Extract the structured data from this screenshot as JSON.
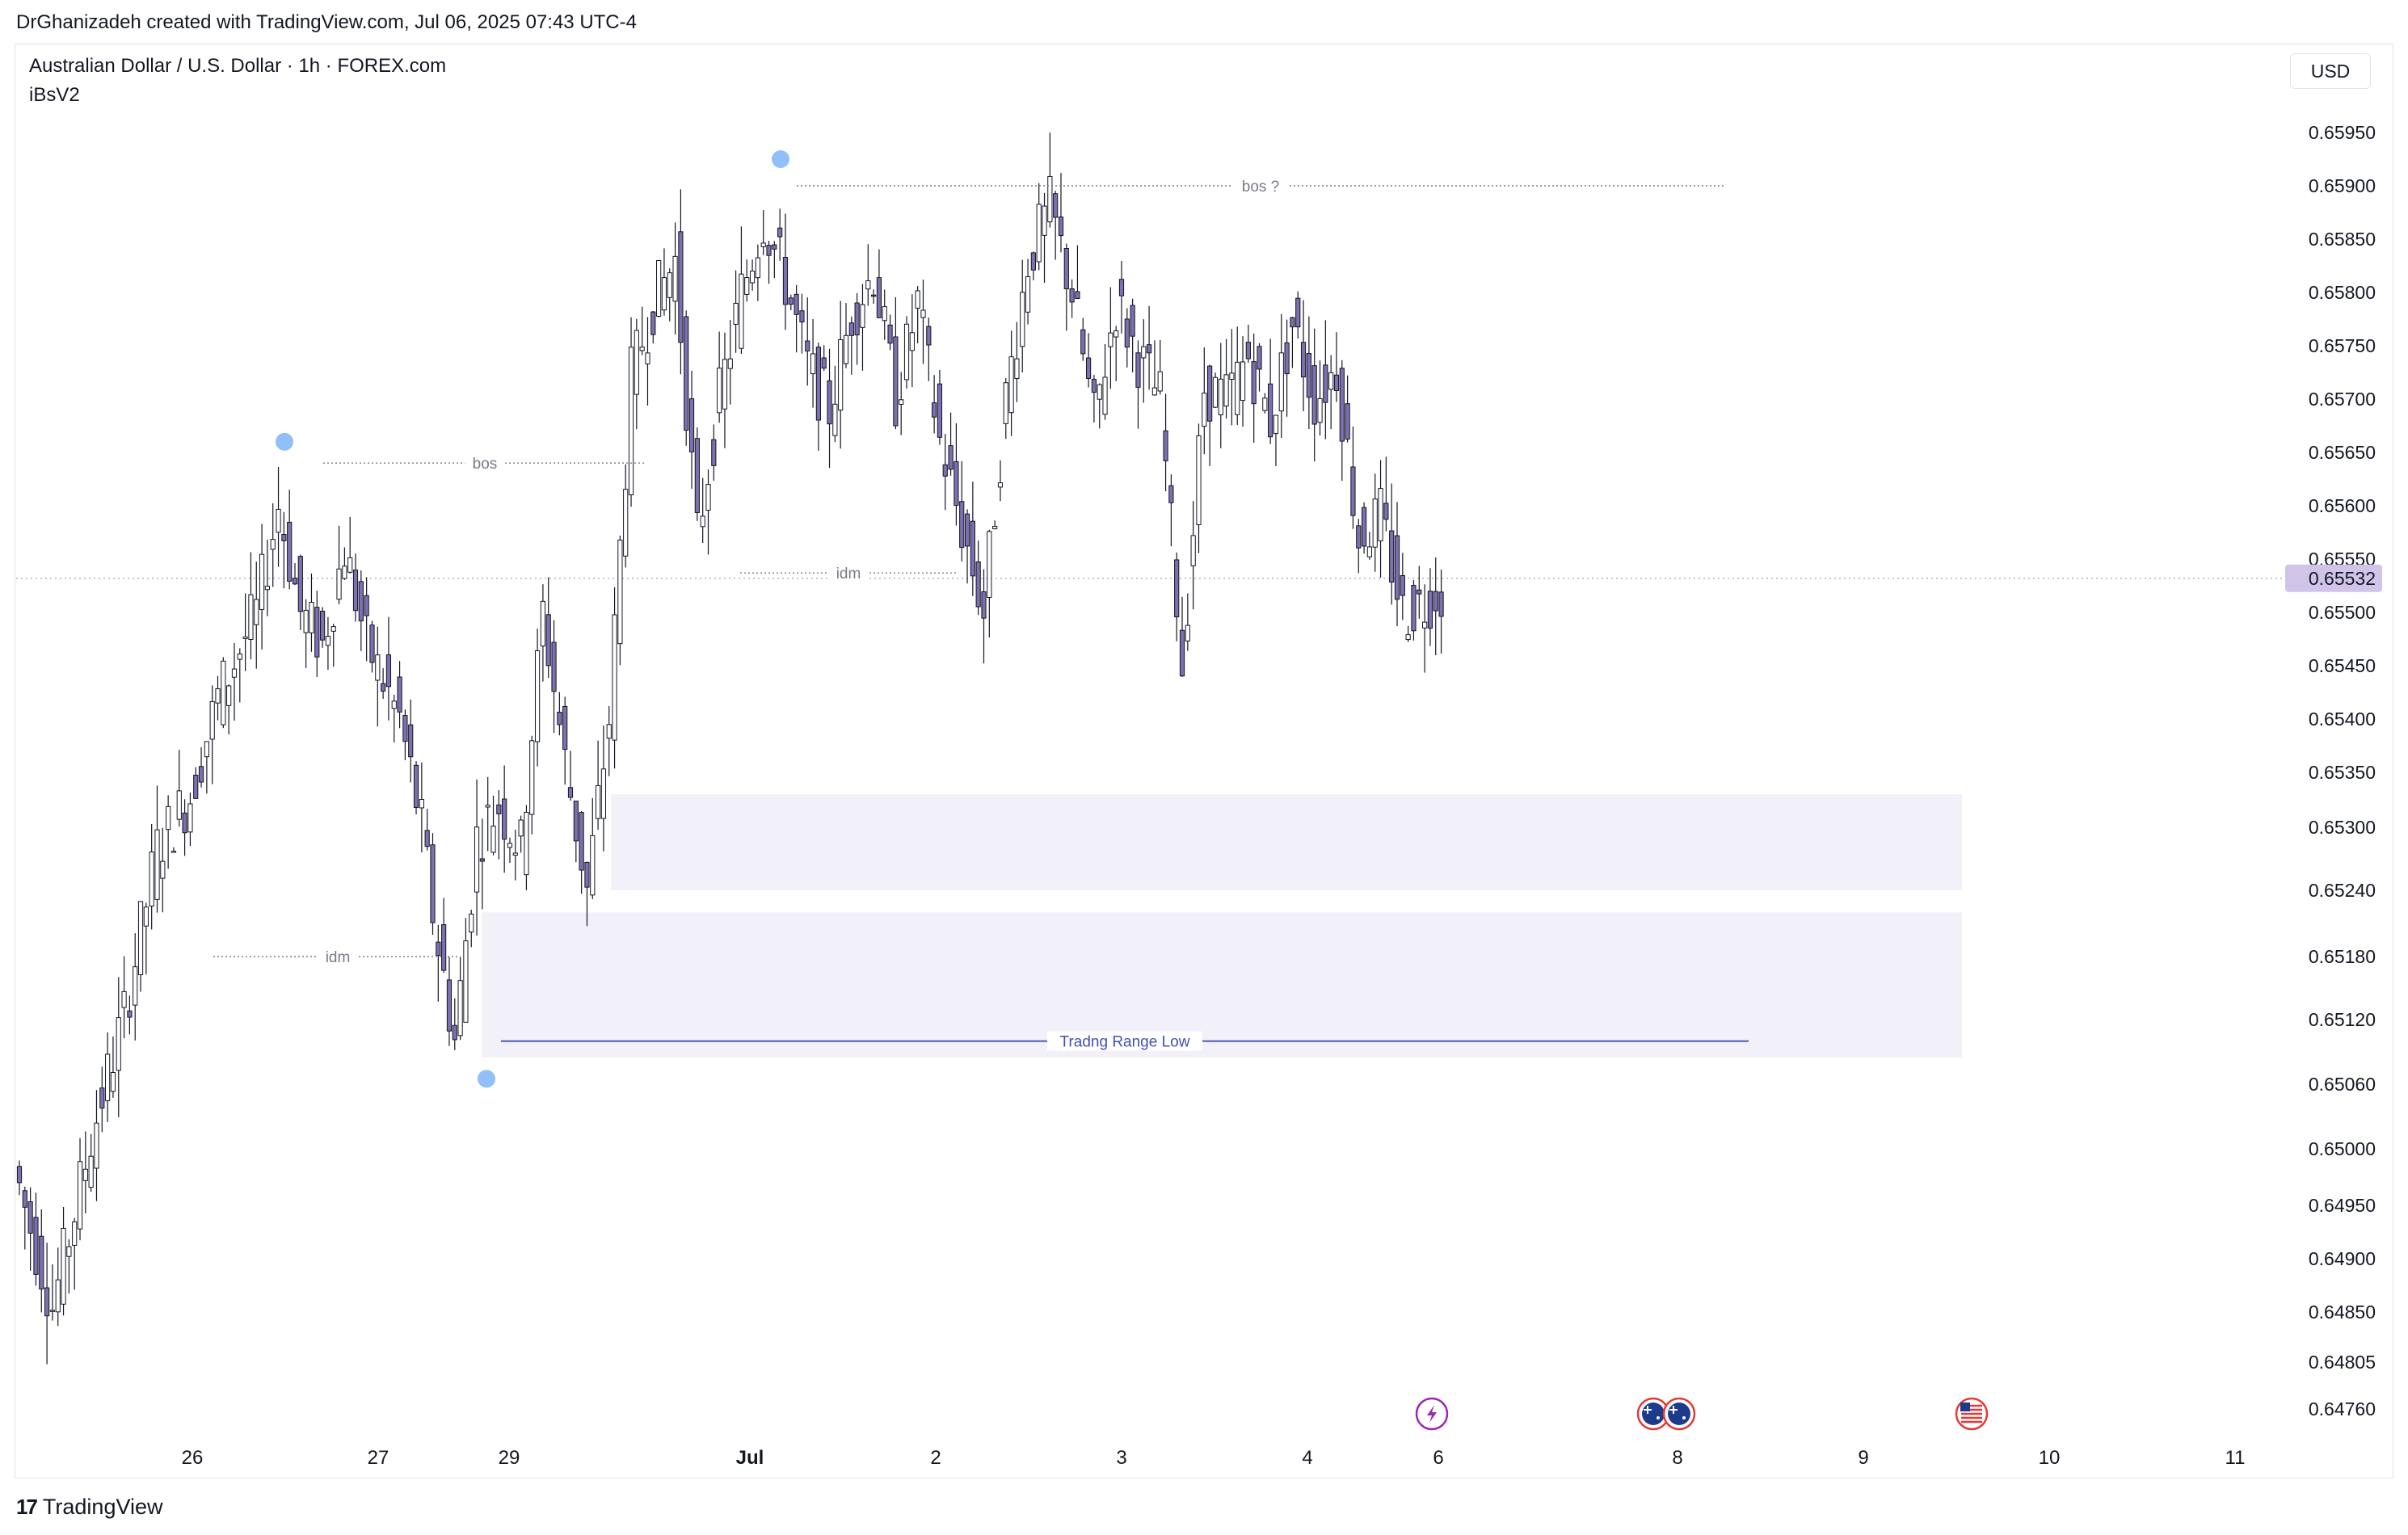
{
  "header": {
    "attribution": "DrGhanizadeh created with TradingView.com, Jul 06, 2025 07:43 UTC-4"
  },
  "symbol": {
    "title": "Australian Dollar / U.S. Dollar · 1h · FOREX.com",
    "indicator": "iBsV2"
  },
  "currency_button": "USD",
  "footer": {
    "brand": "TradingView",
    "logo_icon": "tradingview-logo-icon"
  },
  "chart_data": {
    "type": "candlestick",
    "timeframe": "1h",
    "price_axis": {
      "ticks": [
        "0.65950",
        "0.65900",
        "0.65850",
        "0.65800",
        "0.65750",
        "0.65700",
        "0.65650",
        "0.65600",
        "0.65550",
        "0.65500",
        "0.65450",
        "0.65400",
        "0.65350",
        "0.65300",
        "0.65240",
        "0.65180",
        "0.65120",
        "0.65060",
        "0.65000",
        "0.64950",
        "0.64900",
        "0.64850",
        "0.64805",
        "0.64760"
      ],
      "current_price": "0.65532"
    },
    "time_axis": {
      "ticks": [
        "26",
        "27",
        "29",
        "Jul",
        "2",
        "3",
        "4",
        "6",
        "8",
        "9",
        "10",
        "11"
      ]
    },
    "annotations": [
      {
        "label": "bos ?",
        "price": 0.659
      },
      {
        "label": "bos",
        "price": 0.6564
      },
      {
        "label": "idm",
        "price": 0.65537
      },
      {
        "label": "idm",
        "price": 0.6518
      },
      {
        "label": "Tradng Range Low",
        "price": 0.651
      }
    ],
    "zones": [
      {
        "top": 0.6533,
        "bottom": 0.6524
      },
      {
        "top": 0.6522,
        "bottom": 0.65085
      }
    ],
    "event_icons": [
      "lightning-icon",
      "australia-flag-icon",
      "australia-flag-icon",
      "us-flag-icon"
    ],
    "colors": {
      "candle_body": "#7e6fb0",
      "candle_border": "#131722",
      "annotation": "#787b86",
      "range_line": "#3f51b5",
      "zone": "#f2f0f9",
      "pivot": "#90bff9",
      "price_tag": "#d1c4e9"
    }
  }
}
